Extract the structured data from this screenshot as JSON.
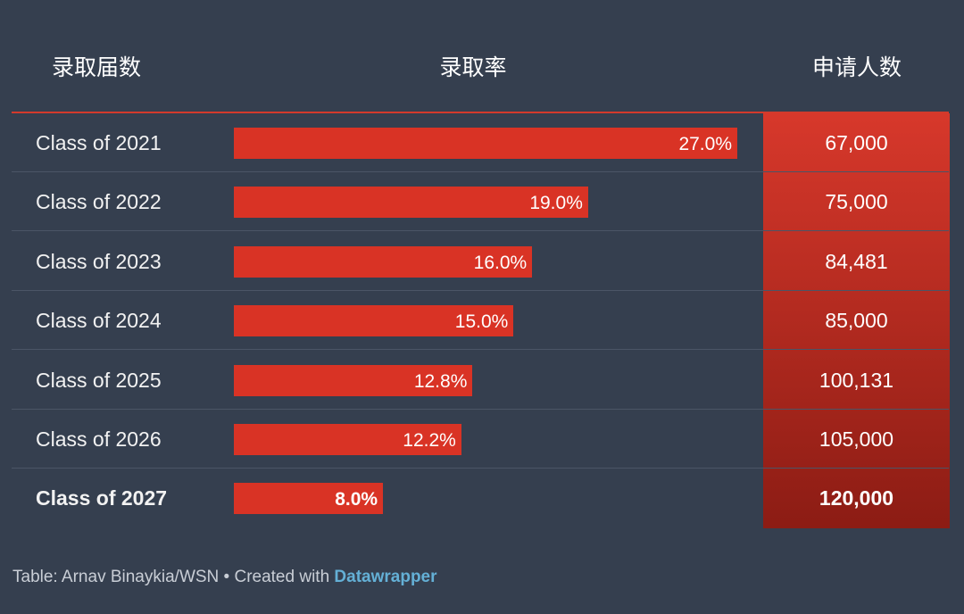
{
  "header": {
    "col_class": "录取届数",
    "col_rate": "录取率",
    "col_apps": "申请人数"
  },
  "colors": {
    "background": "#353f4f",
    "bar": "#d93325",
    "apps_gradient_top": "#d7382b",
    "apps_gradient_bottom": "#8c1c14",
    "link": "#64b0d6"
  },
  "chart_data": {
    "type": "table",
    "rate_scale_max": 27.0,
    "rows": [
      {
        "class": "Class of 2021",
        "rate": 27.0,
        "rate_label": "27.0%",
        "applicants": "67,000",
        "emphasis": false
      },
      {
        "class": "Class of 2022",
        "rate": 19.0,
        "rate_label": "19.0%",
        "applicants": "75,000",
        "emphasis": false
      },
      {
        "class": "Class of 2023",
        "rate": 16.0,
        "rate_label": "16.0%",
        "applicants": "84,481",
        "emphasis": false
      },
      {
        "class": "Class of 2024",
        "rate": 15.0,
        "rate_label": "15.0%",
        "applicants": "85,000",
        "emphasis": false
      },
      {
        "class": "Class of 2025",
        "rate": 12.8,
        "rate_label": "12.8%",
        "applicants": "100,131",
        "emphasis": false
      },
      {
        "class": "Class of 2026",
        "rate": 12.2,
        "rate_label": "12.2%",
        "applicants": "105,000",
        "emphasis": false
      },
      {
        "class": "Class of 2027",
        "rate": 8.0,
        "rate_label": "8.0%",
        "applicants": "120,000",
        "emphasis": true
      }
    ]
  },
  "footer": {
    "credit": "Table: Arnav Binaykia/WSN • Created with ",
    "link": "Datawrapper"
  }
}
